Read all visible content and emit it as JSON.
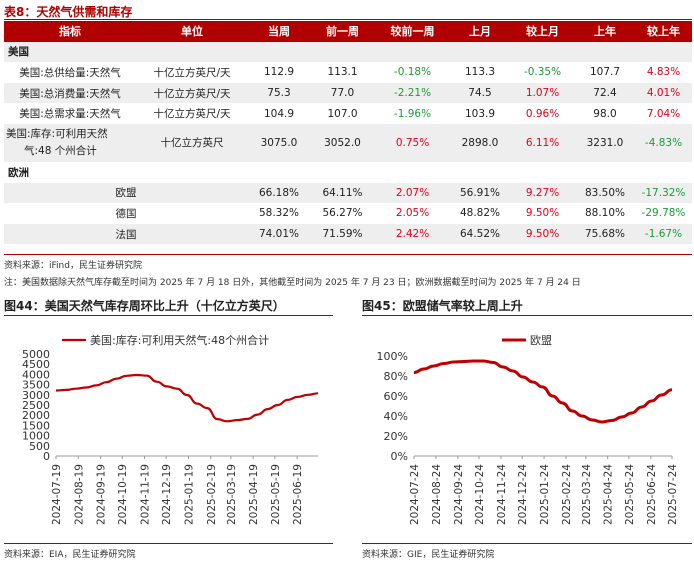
{
  "table": {
    "title": "表8：天然气供需和库存",
    "headers": [
      "指标",
      "单位",
      "当周",
      "前一周",
      "较前一周",
      "上月",
      "较上月",
      "上年",
      "较上年"
    ],
    "us_section": "美国",
    "us_rows": [
      {
        "name": "美国:总供给量:天然气",
        "unit": "十亿立方英尺/天",
        "cur": "112.9",
        "prev": "113.1",
        "wow": "-0.18%",
        "wow_dir": "neg",
        "lm": "113.3",
        "mom": "-0.35%",
        "mom_dir": "neg",
        "ly": "107.7",
        "yoy": "4.83%",
        "yoy_dir": "pos"
      },
      {
        "name": "美国:总消费量:天然气",
        "unit": "十亿立方英尺/天",
        "cur": "75.3",
        "prev": "77.0",
        "wow": "-2.21%",
        "wow_dir": "neg",
        "lm": "74.5",
        "mom": "1.07%",
        "mom_dir": "pos",
        "ly": "72.4",
        "yoy": "4.01%",
        "yoy_dir": "pos"
      },
      {
        "name": "美国:总需求量:天然气",
        "unit": "十亿立方英尺/天",
        "cur": "104.9",
        "prev": "107.0",
        "wow": "-1.96%",
        "wow_dir": "neg",
        "lm": "103.9",
        "mom": "0.96%",
        "mom_dir": "pos",
        "ly": "98.0",
        "yoy": "7.04%",
        "yoy_dir": "pos"
      },
      {
        "name1": "美国:库存:可利用天然",
        "name2": "气:48 个州合计",
        "unit": "十亿立方英尺",
        "cur": "3075.0",
        "prev": "3052.0",
        "wow": "0.75%",
        "wow_dir": "pos",
        "lm": "2898.0",
        "mom": "6.11%",
        "mom_dir": "pos",
        "ly": "3231.0",
        "yoy": "-4.83%",
        "yoy_dir": "neg"
      }
    ],
    "eu_section": "欧洲",
    "eu_rows": [
      {
        "name": "欧盟",
        "cur": "66.18%",
        "prev": "64.11%",
        "wow": "2.07%",
        "wow_dir": "pos",
        "lm": "56.91%",
        "mom": "9.27%",
        "mom_dir": "pos",
        "ly": "83.50%",
        "yoy": "-17.32%",
        "yoy_dir": "neg"
      },
      {
        "name": "德国",
        "cur": "58.32%",
        "prev": "56.27%",
        "wow": "2.05%",
        "wow_dir": "pos",
        "lm": "48.82%",
        "mom": "9.50%",
        "mom_dir": "pos",
        "ly": "88.10%",
        "yoy": "-29.78%",
        "yoy_dir": "neg"
      },
      {
        "name": "法国",
        "cur": "74.01%",
        "prev": "71.59%",
        "wow": "2.42%",
        "wow_dir": "pos",
        "lm": "64.52%",
        "mom": "9.50%",
        "mom_dir": "pos",
        "ly": "75.68%",
        "yoy": "-1.67%",
        "yoy_dir": "neg"
      }
    ],
    "source": "资料来源：iFind，民生证券研究院",
    "note": "注：美国数据除天然气库存截至时间为 2025 年 7 月 18 日外，其他截至时间为 2025 年 7 月 23 日；欧洲数据截至时间为 2025 年 7 月 24 日"
  },
  "colors": {
    "brand": "#b00000",
    "neg": "#1e9a3a",
    "pos": "#e0001b",
    "line": "#c00000",
    "shade": "#eeeeee"
  },
  "chart_data": [
    {
      "type": "line",
      "title": "图44：美国天然气库存周环比上升（十亿立方英尺）",
      "series": [
        {
          "name": "美国:库存:可利用天然气:48个州合计",
          "x": [
            "2024-07-19",
            "2024-08-02",
            "2024-08-16",
            "2024-08-30",
            "2024-09-13",
            "2024-09-27",
            "2024-10-11",
            "2024-10-25",
            "2024-11-08",
            "2024-11-22",
            "2024-12-06",
            "2024-12-20",
            "2025-01-03",
            "2025-01-17",
            "2025-01-31",
            "2025-02-14",
            "2025-02-28",
            "2025-03-14",
            "2025-03-28",
            "2025-04-11",
            "2025-04-25",
            "2025-05-09",
            "2025-05-23",
            "2025-06-06",
            "2025-06-20",
            "2025-07-04",
            "2025-07-18"
          ],
          "values": [
            3210,
            3240,
            3300,
            3360,
            3460,
            3620,
            3790,
            3930,
            3970,
            3940,
            3640,
            3410,
            3300,
            2990,
            2570,
            2350,
            1810,
            1700,
            1760,
            1820,
            2030,
            2300,
            2500,
            2750,
            2900,
            3000,
            3075
          ]
        }
      ],
      "xticks": [
        "2024-07-19",
        "2024-08-19",
        "2024-09-19",
        "2024-10-19",
        "2024-11-19",
        "2024-12-19",
        "2025-01-19",
        "2025-02-19",
        "2025-03-19",
        "2025-04-19",
        "2025-05-19",
        "2025-06-19"
      ],
      "ylim": [
        0,
        5000
      ],
      "yticks": [
        "0",
        "500",
        "1000",
        "1500",
        "2000",
        "2500",
        "3000",
        "3500",
        "4000",
        "4500",
        "5000"
      ],
      "legend": "top-left",
      "source": "资料来源：EIA，民生证券研究院"
    },
    {
      "type": "line",
      "title": "图45：欧盟储气率较上周上升",
      "series": [
        {
          "name": "欧盟",
          "x": [
            "2024-07-24",
            "2024-08-07",
            "2024-08-21",
            "2024-09-04",
            "2024-09-18",
            "2024-10-02",
            "2024-10-16",
            "2024-10-30",
            "2024-11-13",
            "2024-11-27",
            "2024-12-11",
            "2024-12-25",
            "2025-01-08",
            "2025-01-22",
            "2025-02-05",
            "2025-02-19",
            "2025-03-05",
            "2025-03-19",
            "2025-04-02",
            "2025-04-16",
            "2025-04-30",
            "2025-05-14",
            "2025-05-28",
            "2025-06-11",
            "2025-06-25",
            "2025-07-09",
            "2025-07-24"
          ],
          "values": [
            83.5,
            87,
            90,
            92.5,
            94,
            94.5,
            95,
            95,
            93.5,
            89,
            85,
            79,
            74,
            69,
            60,
            53,
            45,
            40,
            36,
            34,
            35.5,
            39,
            43,
            49,
            55,
            61,
            66.18
          ]
        }
      ],
      "xticks": [
        "2024-07-24",
        "2024-08-24",
        "2024-09-24",
        "2024-10-24",
        "2024-11-24",
        "2024-12-24",
        "2025-01-24",
        "2025-02-24",
        "2025-03-24",
        "2025-04-24",
        "2025-05-24",
        "2025-06-24",
        "2025-07-24"
      ],
      "ylim": [
        0,
        100
      ],
      "yticks": [
        "0%",
        "20%",
        "40%",
        "60%",
        "80%",
        "100%"
      ],
      "legend": "top-center",
      "source": "资料来源：GIE，民生证券研究院"
    }
  ]
}
